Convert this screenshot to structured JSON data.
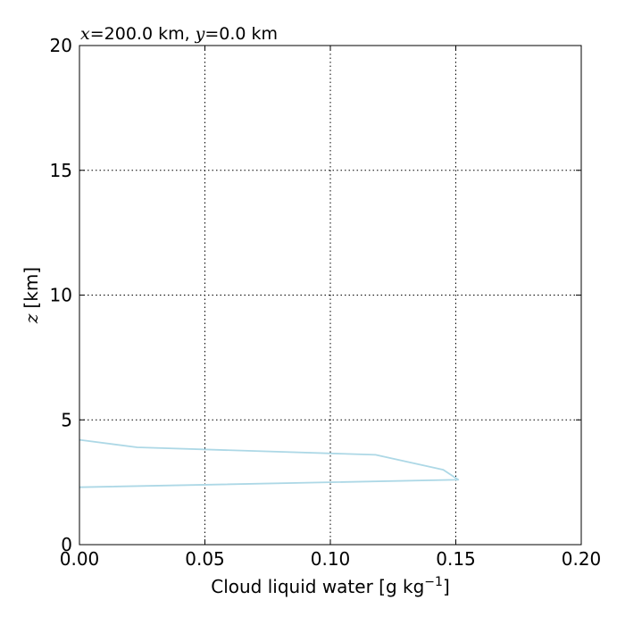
{
  "chart_data": {
    "type": "line",
    "title": {
      "x_var": "x",
      "x_value": "200.0 km",
      "separator": ",",
      "y_var": "y",
      "y_value": "0.0 km",
      "equals": "="
    },
    "xlabel": {
      "text": "Cloud liquid water [g kg",
      "exponent": "−1",
      "close": "]"
    },
    "ylabel": {
      "var": "z",
      "unit": "[km]"
    },
    "xlim": [
      0.0,
      0.2
    ],
    "ylim": [
      0,
      20
    ],
    "x_ticks": [
      {
        "value": 0.0,
        "label": "0.00"
      },
      {
        "value": 0.05,
        "label": "0.05"
      },
      {
        "value": 0.1,
        "label": "0.10"
      },
      {
        "value": 0.15,
        "label": "0.15"
      },
      {
        "value": 0.2,
        "label": "0.20"
      }
    ],
    "y_ticks": [
      {
        "value": 0,
        "label": "0"
      },
      {
        "value": 5,
        "label": "5"
      },
      {
        "value": 10,
        "label": "10"
      },
      {
        "value": 15,
        "label": "15"
      },
      {
        "value": 20,
        "label": "20"
      }
    ],
    "grid": true,
    "series": [
      {
        "color": "#add8e6",
        "x": [
          0.0,
          0.0,
          0.151,
          0.145,
          0.118,
          0.023,
          0.0
        ],
        "y": [
          2.3,
          2.3,
          2.6,
          3.0,
          3.6,
          3.9,
          4.2
        ]
      }
    ]
  }
}
